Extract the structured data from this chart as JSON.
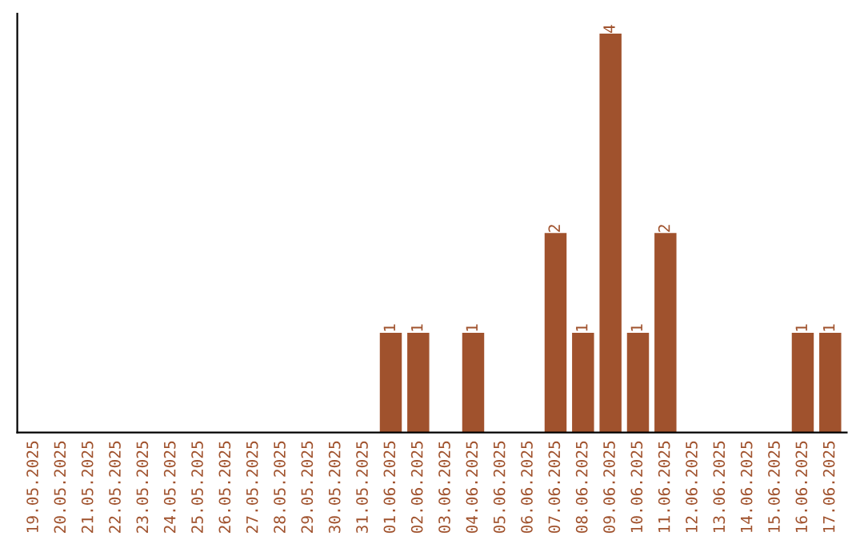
{
  "chart_data": {
    "type": "bar",
    "categories": [
      "19.05.2025",
      "20.05.2025",
      "21.05.2025",
      "22.05.2025",
      "23.05.2025",
      "24.05.2025",
      "25.05.2025",
      "26.05.2025",
      "27.05.2025",
      "28.05.2025",
      "29.05.2025",
      "30.05.2025",
      "31.05.2025",
      "01.06.2025",
      "02.06.2025",
      "03.06.2025",
      "04.06.2025",
      "05.06.2025",
      "06.06.2025",
      "07.06.2025",
      "08.06.2025",
      "09.06.2025",
      "10.06.2025",
      "11.06.2025",
      "12.06.2025",
      "13.06.2025",
      "14.06.2025",
      "15.06.2025",
      "16.06.2025",
      "17.06.2025"
    ],
    "values": [
      null,
      null,
      null,
      null,
      null,
      null,
      null,
      null,
      null,
      null,
      null,
      null,
      null,
      1,
      1,
      null,
      1,
      null,
      null,
      2,
      1,
      4,
      1,
      2,
      null,
      null,
      null,
      null,
      1,
      1
    ],
    "data_labels": true,
    "color": "#a0522d",
    "tick_labels": "x",
    "grid": false
  }
}
